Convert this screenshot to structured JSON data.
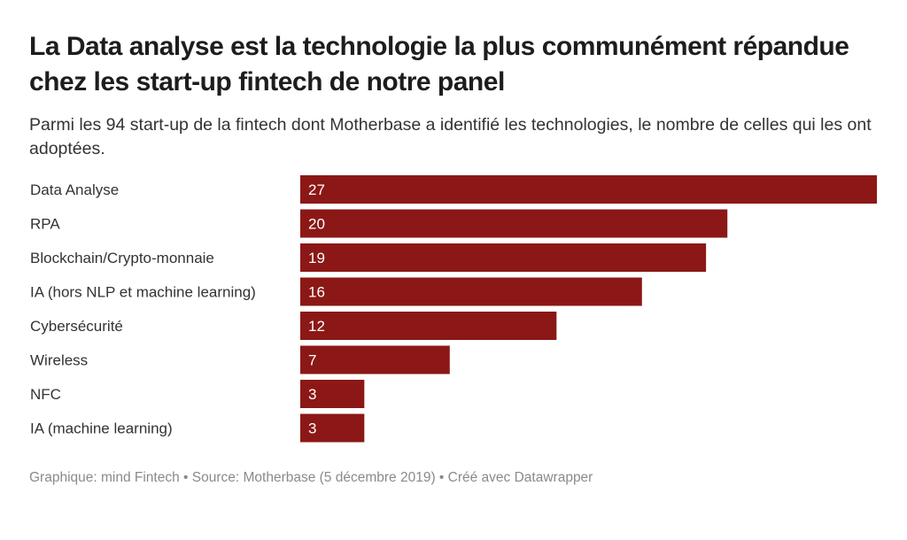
{
  "header": {
    "title": "La Data analyse est la technologie la plus communément répandue chez les start-up fintech de notre panel",
    "subtitle": "Parmi les 94 start-up de la fintech dont Motherbase a identifié les technologies, le nombre de celles qui les ont adoptées."
  },
  "footer": {
    "notes": "Graphique: mind Fintech • Source: Motherbase (5 décembre 2019) • Créé avec Datawrapper"
  },
  "colors": {
    "bar": "#8b1816",
    "value_label": "#ffffff"
  },
  "chart_data": {
    "type": "bar",
    "orientation": "horizontal",
    "title": "La Data analyse est la technologie la plus communément répandue chez les start-up fintech de notre panel",
    "subtitle": "Parmi les 94 start-up de la fintech dont Motherbase a identifié les technologies, le nombre de celles qui les ont adoptées.",
    "categories": [
      "Data Analyse",
      "RPA",
      "Blockchain/Crypto-monnaie",
      "IA (hors NLP et machine learning)",
      "Cybersécurité",
      "Wireless",
      "NFC",
      "IA (machine learning)"
    ],
    "values": [
      27,
      20,
      19,
      16,
      12,
      7,
      3,
      3
    ],
    "value_labels": [
      "27",
      "20",
      "19",
      "16",
      "12",
      "7",
      "3",
      "3"
    ],
    "xlabel": "",
    "ylabel": "",
    "xlim": [
      0,
      27
    ],
    "grid": false,
    "legend": "none"
  }
}
